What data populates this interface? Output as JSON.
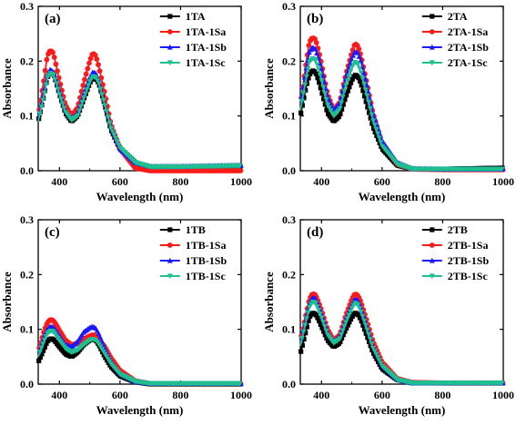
{
  "chart_data": [
    {
      "type": "line",
      "panel_label": "(a)",
      "xlabel": "Wavelength (nm)",
      "ylabel": "Absorbance",
      "xlim": [
        330,
        1000
      ],
      "ylim": [
        0,
        0.3
      ],
      "xticks": [
        400,
        600,
        800,
        1000
      ],
      "yticks": [
        0.0,
        0.1,
        0.2,
        0.3
      ],
      "ytick_labels": [
        "0.0",
        "0.1",
        "0.2",
        "0.3"
      ],
      "legend_position": "top-right",
      "x": [
        330,
        350,
        360,
        370,
        380,
        390,
        400,
        420,
        440,
        460,
        480,
        500,
        510,
        520,
        530,
        550,
        570,
        600,
        650,
        700,
        800,
        900,
        1000
      ],
      "series": [
        {
          "name": "1TA",
          "color": "#000000",
          "marker": "square",
          "values": [
            0.09,
            0.14,
            0.17,
            0.18,
            0.178,
            0.16,
            0.14,
            0.105,
            0.09,
            0.1,
            0.13,
            0.16,
            0.17,
            0.168,
            0.16,
            0.12,
            0.075,
            0.04,
            0.015,
            0.005,
            0.006,
            0.007,
            0.008
          ]
        },
        {
          "name": "1TA-1Sa",
          "color": "#ff1a1a",
          "marker": "circle",
          "values": [
            0.1,
            0.17,
            0.21,
            0.22,
            0.215,
            0.19,
            0.165,
            0.12,
            0.1,
            0.115,
            0.16,
            0.2,
            0.215,
            0.21,
            0.19,
            0.14,
            0.085,
            0.04,
            0.005,
            0.0,
            0.0,
            0.0,
            0.0
          ]
        },
        {
          "name": "1TA-1Sb",
          "color": "#1a1aff",
          "marker": "triangle-up",
          "values": [
            0.095,
            0.15,
            0.175,
            0.185,
            0.18,
            0.165,
            0.145,
            0.11,
            0.095,
            0.105,
            0.14,
            0.17,
            0.18,
            0.178,
            0.165,
            0.12,
            0.08,
            0.04,
            0.015,
            0.008,
            0.008,
            0.009,
            0.01
          ]
        },
        {
          "name": "1TA-1Sc",
          "color": "#1fbf8f",
          "marker": "triangle-down",
          "values": [
            0.09,
            0.14,
            0.17,
            0.178,
            0.175,
            0.16,
            0.14,
            0.107,
            0.092,
            0.1,
            0.132,
            0.162,
            0.172,
            0.17,
            0.16,
            0.12,
            0.078,
            0.042,
            0.015,
            0.007,
            0.007,
            0.008,
            0.009
          ]
        }
      ]
    },
    {
      "type": "line",
      "panel_label": "(b)",
      "xlabel": "Wavelength (nm)",
      "ylabel": "Absorbance",
      "xlim": [
        330,
        1000
      ],
      "ylim": [
        0,
        0.3
      ],
      "xticks": [
        400,
        600,
        800,
        1000
      ],
      "yticks": [
        0.0,
        0.1,
        0.2,
        0.3
      ],
      "ytick_labels": [
        "0.0",
        "0.1",
        "0.2",
        "0.3"
      ],
      "legend_position": "top-right",
      "x": [
        330,
        350,
        360,
        370,
        380,
        390,
        400,
        420,
        440,
        460,
        480,
        500,
        510,
        520,
        530,
        550,
        570,
        600,
        650,
        700,
        800,
        900,
        1000
      ],
      "series": [
        {
          "name": "2TA",
          "color": "#000000",
          "marker": "square",
          "values": [
            0.1,
            0.155,
            0.175,
            0.183,
            0.18,
            0.165,
            0.145,
            0.105,
            0.09,
            0.1,
            0.135,
            0.165,
            0.175,
            0.172,
            0.16,
            0.12,
            0.08,
            0.04,
            0.01,
            0.003,
            0.003,
            0.004,
            0.005
          ]
        },
        {
          "name": "2TA-1Sa",
          "color": "#ff1a1a",
          "marker": "circle",
          "values": [
            0.12,
            0.2,
            0.235,
            0.243,
            0.24,
            0.22,
            0.195,
            0.14,
            0.11,
            0.125,
            0.175,
            0.215,
            0.232,
            0.228,
            0.21,
            0.16,
            0.105,
            0.05,
            0.012,
            0.003,
            0.002,
            0.002,
            0.002
          ]
        },
        {
          "name": "2TA-1Sb",
          "color": "#1a1aff",
          "marker": "triangle-up",
          "values": [
            0.12,
            0.19,
            0.218,
            0.225,
            0.222,
            0.205,
            0.185,
            0.135,
            0.11,
            0.123,
            0.17,
            0.205,
            0.217,
            0.215,
            0.2,
            0.155,
            0.105,
            0.055,
            0.015,
            0.004,
            0.003,
            0.003,
            0.003
          ]
        },
        {
          "name": "2TA-1Sc",
          "color": "#1fbf8f",
          "marker": "triangle-down",
          "values": [
            0.11,
            0.17,
            0.198,
            0.205,
            0.202,
            0.187,
            0.165,
            0.12,
            0.1,
            0.112,
            0.155,
            0.188,
            0.198,
            0.195,
            0.18,
            0.138,
            0.092,
            0.045,
            0.012,
            0.003,
            0.003,
            0.003,
            0.003
          ]
        }
      ]
    },
    {
      "type": "line",
      "panel_label": "(c)",
      "xlabel": "Wavelength (nm)",
      "ylabel": "Absorbance",
      "xlim": [
        330,
        1000
      ],
      "ylim": [
        0,
        0.3
      ],
      "xticks": [
        400,
        600,
        800,
        1000
      ],
      "yticks": [
        0.0,
        0.1,
        0.2,
        0.3
      ],
      "ytick_labels": [
        "0.0",
        "0.1",
        "0.2",
        "0.3"
      ],
      "legend_position": "top-right",
      "x": [
        330,
        350,
        360,
        370,
        380,
        390,
        400,
        420,
        440,
        460,
        480,
        500,
        510,
        520,
        530,
        550,
        570,
        600,
        650,
        700,
        800,
        900,
        1000
      ],
      "series": [
        {
          "name": "1TB",
          "color": "#000000",
          "marker": "square",
          "values": [
            0.04,
            0.065,
            0.078,
            0.083,
            0.082,
            0.075,
            0.068,
            0.055,
            0.05,
            0.058,
            0.072,
            0.08,
            0.082,
            0.08,
            0.072,
            0.05,
            0.032,
            0.015,
            0.004,
            0.0,
            0.0,
            0.0,
            0.0
          ]
        },
        {
          "name": "1TB-1Sa",
          "color": "#ff1a1a",
          "marker": "circle",
          "values": [
            0.06,
            0.098,
            0.112,
            0.118,
            0.116,
            0.108,
            0.098,
            0.08,
            0.072,
            0.074,
            0.082,
            0.088,
            0.09,
            0.088,
            0.082,
            0.068,
            0.048,
            0.025,
            0.006,
            0.001,
            0.001,
            0.001,
            0.001
          ]
        },
        {
          "name": "1TB-1Sb",
          "color": "#1a1aff",
          "marker": "triangle-up",
          "values": [
            0.055,
            0.088,
            0.1,
            0.105,
            0.104,
            0.097,
            0.088,
            0.072,
            0.068,
            0.078,
            0.095,
            0.103,
            0.105,
            0.102,
            0.092,
            0.065,
            0.042,
            0.02,
            0.005,
            0.001,
            0.001,
            0.001,
            0.001
          ]
        },
        {
          "name": "1TB-1Sc",
          "color": "#1fbf8f",
          "marker": "triangle-down",
          "values": [
            0.05,
            0.08,
            0.092,
            0.097,
            0.096,
            0.088,
            0.08,
            0.065,
            0.058,
            0.062,
            0.072,
            0.08,
            0.082,
            0.08,
            0.073,
            0.055,
            0.037,
            0.018,
            0.005,
            0.001,
            0.001,
            0.001,
            0.001
          ]
        }
      ]
    },
    {
      "type": "line",
      "panel_label": "(d)",
      "xlabel": "Wavelength (nm)",
      "ylabel": "Absorbance",
      "xlim": [
        330,
        1000
      ],
      "ylim": [
        0,
        0.3
      ],
      "xticks": [
        400,
        600,
        800,
        1000
      ],
      "yticks": [
        0.0,
        0.1,
        0.2,
        0.3
      ],
      "ytick_labels": [
        "0.0",
        "0.1",
        "0.2",
        "0.3"
      ],
      "legend_position": "top-right",
      "x": [
        330,
        350,
        360,
        370,
        380,
        390,
        400,
        420,
        440,
        460,
        480,
        500,
        510,
        520,
        530,
        550,
        570,
        600,
        650,
        700,
        800,
        900,
        1000
      ],
      "series": [
        {
          "name": "2TB",
          "color": "#000000",
          "marker": "square",
          "values": [
            0.055,
            0.1,
            0.122,
            0.13,
            0.128,
            0.118,
            0.105,
            0.08,
            0.068,
            0.075,
            0.1,
            0.122,
            0.13,
            0.128,
            0.118,
            0.088,
            0.058,
            0.028,
            0.008,
            0.002,
            0.002,
            0.002,
            0.002
          ]
        },
        {
          "name": "2TB-1Sa",
          "color": "#ff1a1a",
          "marker": "circle",
          "values": [
            0.08,
            0.13,
            0.155,
            0.165,
            0.163,
            0.15,
            0.135,
            0.1,
            0.08,
            0.09,
            0.125,
            0.155,
            0.165,
            0.162,
            0.15,
            0.115,
            0.078,
            0.04,
            0.01,
            0.003,
            0.002,
            0.002,
            0.002
          ]
        },
        {
          "name": "2TB-1Sb",
          "color": "#1a1aff",
          "marker": "triangle-up",
          "values": [
            0.075,
            0.125,
            0.148,
            0.158,
            0.156,
            0.143,
            0.128,
            0.095,
            0.078,
            0.086,
            0.118,
            0.145,
            0.155,
            0.153,
            0.14,
            0.105,
            0.07,
            0.035,
            0.009,
            0.002,
            0.002,
            0.002,
            0.002
          ]
        },
        {
          "name": "2TB-1Sc",
          "color": "#1fbf8f",
          "marker": "triangle-down",
          "values": [
            0.07,
            0.118,
            0.14,
            0.15,
            0.148,
            0.136,
            0.122,
            0.09,
            0.075,
            0.082,
            0.112,
            0.138,
            0.148,
            0.145,
            0.133,
            0.1,
            0.066,
            0.033,
            0.008,
            0.002,
            0.002,
            0.002,
            0.002
          ]
        }
      ]
    }
  ]
}
